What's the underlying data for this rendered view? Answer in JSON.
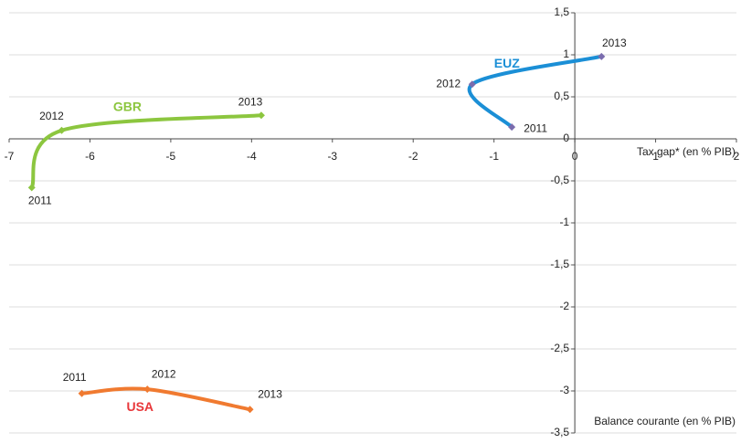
{
  "chart_data": {
    "type": "line",
    "x_label": "Tax gap* (en % PIB)",
    "y_label": "Balance courante (en % PIB)",
    "xlim": [
      -7,
      2
    ],
    "xticks": [
      -7,
      -6,
      -5,
      -4,
      -3,
      -2,
      -1,
      0,
      1,
      2
    ],
    "ylim": [
      -3.5,
      1.5
    ],
    "yticks": [
      {
        "value": 1.5,
        "label": "1,5"
      },
      1,
      {
        "value": 0.5,
        "label": "0,5"
      },
      0,
      {
        "value": -0.5,
        "label": "-0,5"
      },
      -1,
      {
        "value": -1.5,
        "label": "-1,5"
      },
      -2,
      {
        "value": -2.5,
        "label": "-2,5"
      },
      -3,
      {
        "value": -3.5,
        "label": "-3,5"
      }
    ],
    "grid": true,
    "series": [
      {
        "name": "GBR",
        "color": "#8cc63f",
        "label_color": "#8cc63f",
        "marker_color": "#8cc63f",
        "x": [
          -6.72,
          -6.35,
          -3.88
        ],
        "values": [
          -0.58,
          0.1,
          0.28
        ],
        "point_labels": [
          "2011",
          "2012",
          "2013"
        ]
      },
      {
        "name": "EUZ",
        "color": "#1b8fd6",
        "label_color": "#1b8fd6",
        "marker_color": "#7a6cae",
        "x": [
          -0.78,
          -1.27,
          0.33
        ],
        "values": [
          0.14,
          0.65,
          0.98
        ],
        "point_labels": [
          "2011",
          "2012",
          "2013"
        ]
      },
      {
        "name": "USA",
        "color": "#f07a30",
        "label_color": "#e8373a",
        "marker_color": "#f07a30",
        "x": [
          -6.1,
          -5.29,
          -4.02
        ],
        "values": [
          -3.03,
          -2.98,
          -3.22
        ],
        "point_labels": [
          "2011",
          "2012",
          "2013"
        ]
      }
    ]
  }
}
